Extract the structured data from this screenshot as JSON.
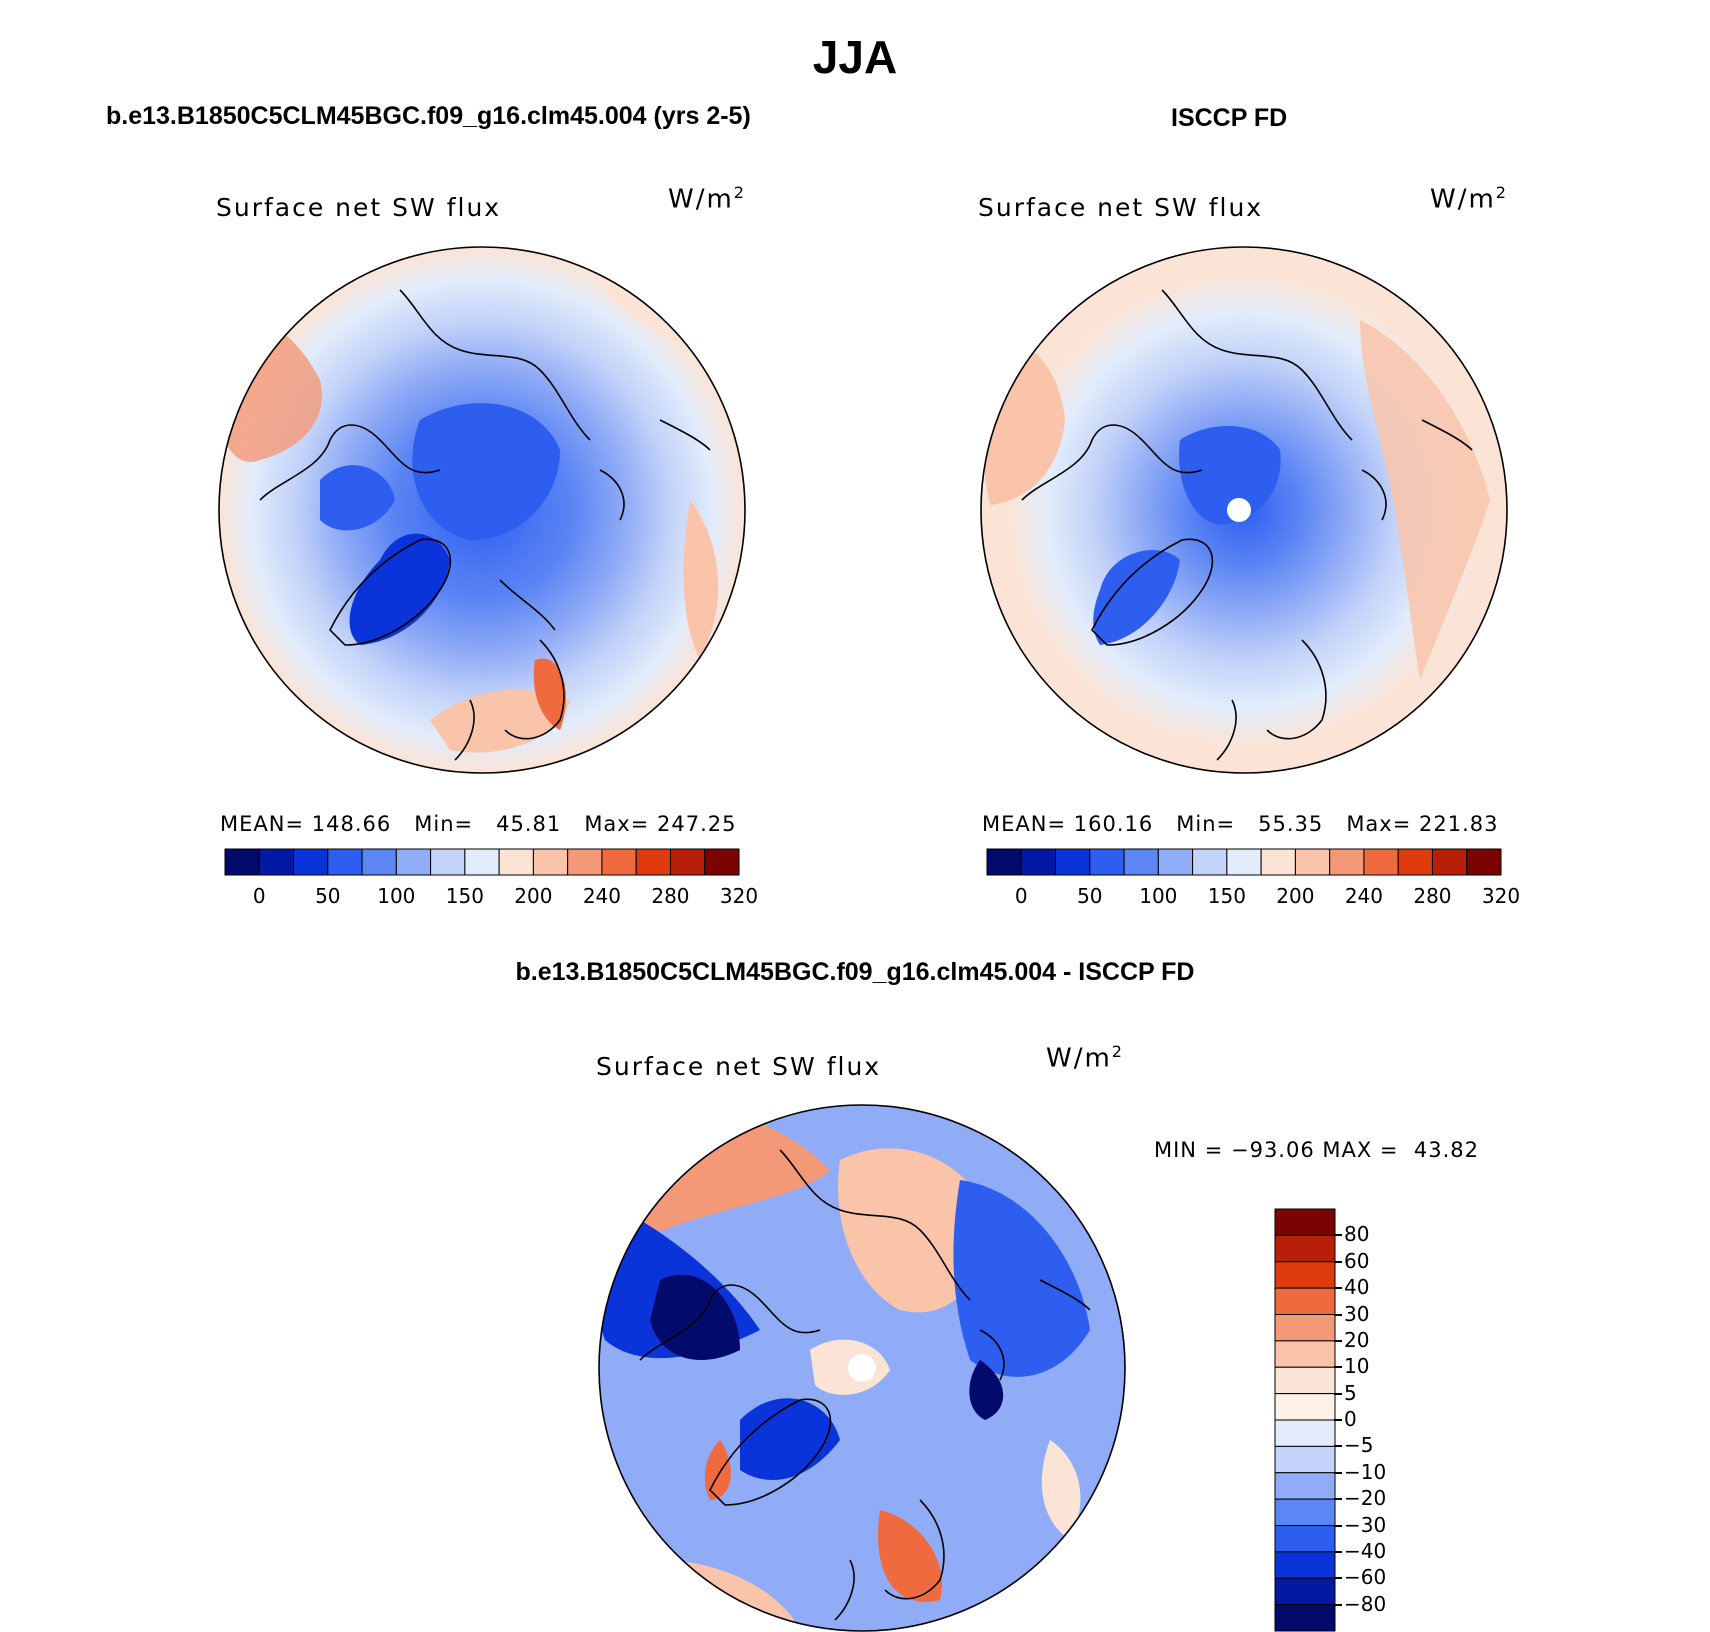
{
  "figure": {
    "season_title": "JJA"
  },
  "panels": [
    {
      "id": "model",
      "title": "b.e13.B1850C5CLM45BGC.f09_g16.clm45.004 (yrs 2-5)",
      "plot_title": "Surface net SW flux",
      "units_base": "W/m",
      "units_sup": "2",
      "stats": {
        "mean_label": "MEAN=",
        "mean": "148.66",
        "min_label": "Min=",
        "min": "45.81",
        "max_label": "Max=",
        "max": "247.25"
      }
    },
    {
      "id": "obs",
      "title": "ISCCP FD",
      "plot_title": "Surface net SW flux",
      "units_base": "W/m",
      "units_sup": "2",
      "stats": {
        "mean_label": "MEAN=",
        "mean": "160.16",
        "min_label": "Min=",
        "min": "55.35",
        "max_label": "Max=",
        "max": "221.83"
      }
    },
    {
      "id": "diff",
      "title": "b.e13.B1850C5CLM45BGC.f09_g16.clm45.004 - ISCCP FD",
      "plot_title": "Surface net SW flux",
      "units_base": "W/m",
      "units_sup": "2",
      "stats": {
        "min_label": "MIN =",
        "min": "−93.06",
        "max_label": "MAX =",
        "max": "43.82"
      }
    }
  ],
  "chart_data": [
    {
      "type": "heatmap",
      "projection": "north polar stereographic",
      "title": "Surface net SW flux",
      "units": "W/m2",
      "mean": 148.66,
      "min": 45.81,
      "max": 247.25,
      "colorbar": {
        "orientation": "horizontal",
        "colors": [
          "#020a6b",
          "#0219a4",
          "#0a34d9",
          "#2e5ef0",
          "#5c86f4",
          "#91acf6",
          "#c3d3f9",
          "#e2ecfb",
          "#fbe4d6",
          "#f9c4aa",
          "#f49977",
          "#ef6a3e",
          "#e03b0e",
          "#b71f08",
          "#7b0402"
        ],
        "tick_labels": [
          "0",
          "50",
          "100",
          "150",
          "200",
          "240",
          "280",
          "320"
        ]
      }
    },
    {
      "type": "heatmap",
      "projection": "north polar stereographic",
      "title": "Surface net SW flux",
      "units": "W/m2",
      "mean": 160.16,
      "min": 55.35,
      "max": 221.83,
      "colorbar": {
        "orientation": "horizontal",
        "colors": [
          "#020a6b",
          "#0219a4",
          "#0a34d9",
          "#2e5ef0",
          "#5c86f4",
          "#91acf6",
          "#c3d3f9",
          "#e2ecfb",
          "#fbe4d6",
          "#f9c4aa",
          "#f49977",
          "#ef6a3e",
          "#e03b0e",
          "#b71f08",
          "#7b0402"
        ],
        "tick_labels": [
          "0",
          "50",
          "100",
          "150",
          "200",
          "240",
          "280",
          "320"
        ]
      }
    },
    {
      "type": "heatmap",
      "projection": "north polar stereographic",
      "title": "Surface net SW flux",
      "units": "W/m2",
      "min": -93.06,
      "max": 43.82,
      "colorbar": {
        "orientation": "vertical",
        "colors": [
          "#7b0402",
          "#b71f08",
          "#e03b0e",
          "#ef6a3e",
          "#f49977",
          "#f9c4aa",
          "#fbe4d6",
          "#fdf1e8",
          "#e2ecfb",
          "#c3d3f9",
          "#91acf6",
          "#5c86f4",
          "#2e5ef0",
          "#0a34d9",
          "#0219a4",
          "#020a6b"
        ],
        "tick_labels": [
          "80",
          "60",
          "40",
          "30",
          "20",
          "10",
          "5",
          "0",
          "−5",
          "−10",
          "−20",
          "−30",
          "−40",
          "−60",
          "−80"
        ]
      }
    }
  ]
}
